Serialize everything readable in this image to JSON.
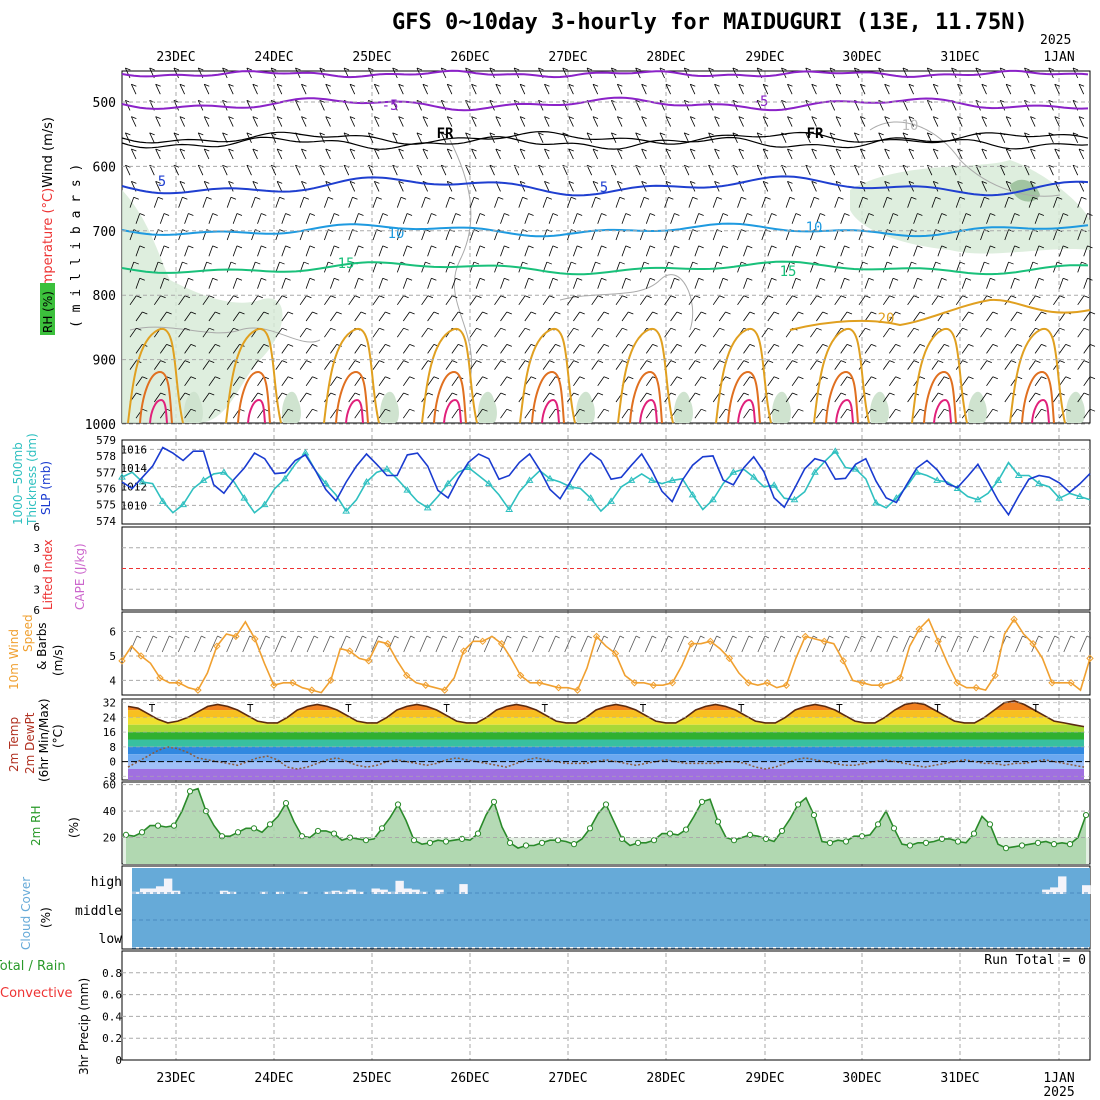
{
  "title": "GFS 0~10day 3-hourly for MAIDUGURI (13E, 11.75N)",
  "year": "2025",
  "dates": [
    "23DEC",
    "24DEC",
    "25DEC",
    "26DEC",
    "27DEC",
    "28DEC",
    "29DEC",
    "30DEC",
    "31DEC",
    "1JAN"
  ],
  "colors": {
    "frame": "#000000",
    "grid": "#aaaaaa",
    "purple": "#8b22c8",
    "blue": "#1f3fd0",
    "lightblue": "#1e9ae0",
    "green_iso": "#19c07a",
    "orange": "#e0a020",
    "darkorange": "#e07020",
    "magenta": "#e0207a",
    "slp": "#1a3bd0",
    "thick": "#2fc0c0",
    "wind10": "#f0a030",
    "rh": "#2a9a2a",
    "cloud": "#66aad8",
    "cape": "#cc66cc",
    "li": "#ee3333"
  },
  "panels": {
    "upper_air": {
      "axis_label_wind": "Wind (m/s)",
      "axis_label_temp": "Temperature (°C)",
      "axis_label_rh": "RH (%)",
      "axis_label_press": "( m i l l i b a r s )",
      "ticks": [
        "500",
        "600",
        "700",
        "800",
        "900",
        "1000"
      ],
      "isotherm_labels": [
        "-5",
        "-5",
        "FR",
        "FR",
        "5",
        "5",
        "10",
        "10",
        "15",
        "15",
        "20",
        "10"
      ]
    },
    "slp": {
      "label1": "1000−500mb",
      "label2": "Thickness (dm)",
      "label3": "SLP (mb)",
      "left_ticks": [
        "579",
        "578",
        "577",
        "576",
        "575",
        "574"
      ],
      "right_ticks": [
        "1016",
        "1014",
        "1012",
        "1010"
      ]
    },
    "cape": {
      "label1": "Lifted Index",
      "label2": "CAPE (J/kg)",
      "ticks": [
        "-6",
        "-3",
        "0",
        "3",
        "6"
      ]
    },
    "wind10": {
      "label1": "10m Wind",
      "label2": "Speed",
      "label3": "& Barbs",
      "label4": "(m/s)",
      "ticks": [
        "6",
        "5",
        "4"
      ]
    },
    "temp2m": {
      "label1": "2m Temp",
      "label2": "2m DewPt",
      "label3": "(6hr Min/Max)",
      "label4": "(°C)",
      "ticks": [
        "32",
        "24",
        "16",
        "8",
        "0",
        "-8"
      ]
    },
    "rh2m": {
      "label1": "2m RH",
      "label2": "(%)",
      "ticks": [
        "60",
        "40",
        "20"
      ]
    },
    "cloud": {
      "label1": "Cloud Cover",
      "label2": "(%)",
      "ticks": [
        "high",
        "middle",
        "low"
      ]
    },
    "precip": {
      "label1": "3hr Precip (mm)",
      "label2": "Total / Rain",
      "label3": "Convective",
      "run_total": "Run Total = 0",
      "ticks": [
        "0.8",
        "0.6",
        "0.4",
        "0.2",
        "0"
      ]
    }
  },
  "chart_data": [
    {
      "type": "line",
      "title": "1000-500mb Thickness (dm) / SLP (mb)",
      "series": [
        {
          "name": "SLP (mb)",
          "values": [
            1012.5,
            1011.8,
            1013,
            1014.2,
            1016.2,
            1015.6,
            1014.8,
            1015.8,
            1015.8,
            1012.2,
            1011.3,
            1012.8,
            1014,
            1015.6,
            1015,
            1013.4,
            1013.5,
            1014.8,
            1015.4,
            1013.7,
            1011.7,
            1010.5,
            1012.5,
            1014.2,
            1015.5,
            1014.4,
            1013.2,
            1013.2,
            1015.4,
            1015.6,
            1014.2,
            1011.6,
            1010.8,
            1012.9,
            1014.6,
            1015.5,
            1015,
            1012.8,
            1013.2,
            1014.6,
            1015.5,
            1013.8,
            1011.7,
            1010.7,
            1012.5,
            1014.4,
            1015.6,
            1014.8,
            1012.8,
            1013,
            1014.3,
            1015.5,
            1013.7,
            1011.5,
            1010.4,
            1012.7,
            1014.3,
            1015.2,
            1015.3,
            1012.7,
            1012.2,
            1014,
            1015.2,
            1013.6,
            1010.8,
            1009.8,
            1011.8,
            1013.9,
            1015,
            1014.7,
            1012.8,
            1012.9,
            1014.4,
            1015,
            1012.6,
            1010.8,
            1010.3,
            1012.2,
            1014,
            1014.8,
            1013.8,
            1012.3,
            1011.9,
            1013.1,
            1014.4,
            1012.5,
            1010.5,
            1009,
            1011,
            1012.8,
            1013.2,
            1013,
            1012.4,
            1011.4,
            1012.3,
            1013.4
          ]
        },
        {
          "name": "Thickness (dm)",
          "values": [
            576.7,
            577,
            576.4,
            576.3,
            575.2,
            574.5,
            575,
            576,
            576.5,
            576.9,
            577,
            576.4,
            575.4,
            574.5,
            575,
            576,
            576.6,
            577.5,
            578.2,
            577.1,
            576.3,
            575.6,
            574.6,
            575.3,
            576.4,
            577,
            577.2,
            576.6,
            575.9,
            575.2,
            574.8,
            575.5,
            576.3,
            577,
            577.3,
            576.8,
            576.3,
            575.6,
            574.7,
            575.8,
            576.5,
            577.1,
            576.6,
            576.4,
            576.1,
            576,
            575.4,
            574.6,
            575.2,
            576.1,
            576.5,
            576.9,
            576.5,
            576.3,
            576.5,
            576.6,
            575.6,
            574.7,
            575.3,
            576.3,
            577,
            577.2,
            576.7,
            576.1,
            576.2,
            575.4,
            575.3,
            575.8,
            577,
            577.7,
            578.3,
            577.3,
            577.2,
            576.6,
            575.1,
            574.8,
            575.4,
            576.1,
            577,
            576.8,
            576.5,
            576.4,
            576,
            575.5,
            575.3,
            575.7,
            576.5,
            577.6,
            576.8,
            576.8,
            576.3,
            576.1,
            575.4,
            575.7,
            575.5,
            575.3
          ]
        }
      ],
      "ylim_slp": [
        1008,
        1017
      ],
      "ylim_thick": [
        573.8,
        579
      ]
    },
    {
      "type": "line",
      "title": "10m Wind Speed (m/s)",
      "values": [
        4.8,
        5.4,
        5.0,
        4.7,
        4.1,
        3.9,
        3.9,
        3.7,
        3.6,
        4.3,
        5.4,
        5.9,
        5.8,
        6.4,
        5.7,
        4.7,
        3.8,
        3.9,
        3.9,
        3.7,
        3.6,
        3.5,
        4.0,
        5.3,
        5.2,
        4.9,
        4.8,
        5.6,
        5.5,
        4.8,
        4.2,
        3.9,
        3.8,
        3.7,
        3.6,
        4.1,
        5.2,
        5.6,
        5.6,
        5.8,
        5.5,
        4.9,
        4.2,
        3.9,
        3.9,
        3.8,
        3.7,
        3.7,
        3.6,
        4.5,
        5.8,
        5.4,
        5.1,
        4.2,
        3.9,
        3.9,
        3.8,
        3.8,
        3.9,
        4.6,
        5.5,
        5.5,
        5.6,
        5.3,
        4.9,
        4.3,
        3.9,
        3.8,
        3.9,
        3.7,
        3.8,
        4.9,
        5.8,
        5.7,
        5.6,
        5.5,
        4.8,
        4.0,
        3.9,
        3.8,
        3.8,
        3.9,
        4.1,
        5.4,
        6.1,
        6.5,
        5.6,
        4.7,
        3.9,
        3.7,
        3.7,
        3.6,
        4.2,
        5.9,
        6.5,
        5.9,
        5.5,
        4.9,
        3.9,
        3.9,
        3.9,
        3.6,
        4.9
      ],
      "ylim": [
        3.4,
        6.8
      ]
    },
    {
      "type": "area",
      "title": "2m Temp / DewPt (°C)",
      "series": [
        {
          "name": "2m Temp",
          "values": [
            30,
            29,
            26,
            23,
            21,
            22,
            24,
            27,
            30,
            31,
            30,
            28,
            25,
            22,
            21,
            21,
            24,
            28,
            30,
            31,
            30,
            28,
            25,
            22,
            21,
            21,
            24,
            28,
            30,
            31,
            30,
            28,
            25,
            22,
            21,
            21,
            24,
            28,
            30,
            31,
            30,
            28,
            25,
            22,
            21,
            21,
            24,
            28,
            30,
            31,
            30,
            28,
            25,
            22,
            21,
            21,
            24,
            28,
            30,
            31,
            30,
            28,
            25,
            22,
            21,
            21,
            24,
            28,
            30,
            31,
            30,
            28,
            25,
            22,
            21,
            21,
            24,
            28,
            31,
            32,
            31,
            28,
            25,
            22,
            21,
            21,
            24,
            28,
            32,
            33,
            31,
            28,
            25,
            22,
            21,
            20,
            19
          ]
        },
        {
          "name": "2m DewPt",
          "values": [
            -3,
            0,
            3,
            6,
            8,
            7,
            5,
            2,
            1,
            0,
            -1,
            -2,
            0,
            2,
            3,
            1,
            -3,
            -4,
            -3,
            -1,
            1,
            2,
            0,
            -2,
            -3,
            -2,
            0,
            1,
            0,
            -1,
            -2,
            -1,
            1,
            2,
            1,
            0,
            -1,
            -2,
            -3,
            -1,
            1,
            2,
            1,
            0,
            -1,
            -1,
            -1,
            0,
            1,
            0,
            -1,
            -2,
            -1,
            0,
            1,
            0,
            -1,
            -1,
            -1,
            -1,
            0,
            0,
            -1,
            -3,
            -4,
            -3,
            -1,
            1,
            2,
            1,
            0,
            -1,
            -2,
            -2,
            -1,
            0,
            1,
            0,
            -1,
            -2,
            -3,
            -2,
            -1,
            0,
            1,
            0,
            -1,
            -1,
            -2,
            -1,
            -1,
            0,
            1,
            0,
            -1,
            -2,
            -3
          ]
        }
      ],
      "ylim": [
        -10,
        34
      ]
    },
    {
      "type": "area",
      "title": "2m RH (%)",
      "values": [
        22,
        21,
        24,
        29,
        29,
        28,
        29,
        40,
        55,
        57,
        40,
        29,
        21,
        21,
        24,
        27,
        27,
        24,
        30,
        36,
        46,
        32,
        21,
        20,
        25,
        25,
        23,
        18,
        20,
        19,
        18,
        19,
        27,
        35,
        45,
        33,
        18,
        15,
        16,
        18,
        17,
        18,
        19,
        18,
        23,
        37,
        47,
        28,
        16,
        12,
        14,
        14,
        16,
        18,
        18,
        17,
        15,
        19,
        27,
        38,
        45,
        32,
        19,
        14,
        16,
        16,
        18,
        23,
        23,
        22,
        26,
        36,
        47,
        49,
        32,
        20,
        18,
        20,
        22,
        21,
        19,
        17,
        25,
        34,
        45,
        50,
        37,
        17,
        16,
        18,
        17,
        21,
        21,
        22,
        30,
        40,
        27,
        15,
        14,
        16,
        16,
        17,
        19,
        19,
        17,
        16,
        23,
        36,
        30,
        15,
        12,
        13,
        14,
        15,
        16,
        17,
        15,
        16,
        15,
        20,
        37
      ],
      "ylim": [
        0,
        62
      ]
    },
    {
      "type": "bar",
      "title": "Cloud Cover (%)",
      "high_values": [
        10,
        25,
        25,
        35,
        70,
        15,
        0,
        0,
        0,
        0,
        0,
        15,
        10,
        0,
        0,
        0,
        10,
        0,
        10,
        0,
        0,
        10,
        0,
        0,
        10,
        15,
        10,
        20,
        10,
        0,
        25,
        20,
        10,
        60,
        25,
        20,
        10,
        0,
        20,
        0,
        0,
        45,
        0,
        0,
        0,
        0,
        0,
        0,
        0,
        0,
        0,
        0,
        0,
        0,
        0,
        0,
        0,
        0,
        0,
        0,
        0,
        0,
        0,
        0,
        0,
        0,
        0,
        0,
        0,
        0,
        0,
        0,
        0,
        0,
        0,
        0,
        0,
        0,
        0,
        0,
        0,
        0,
        0,
        0,
        0,
        0,
        0,
        0,
        0,
        0,
        0,
        0,
        0,
        0,
        0,
        0,
        0,
        0,
        0,
        0,
        0,
        0,
        0,
        0,
        0,
        0,
        0,
        0,
        0,
        0,
        0,
        0,
        0,
        0,
        20,
        30,
        80,
        0,
        0,
        40
      ],
      "ylim": [
        0,
        100
      ]
    },
    {
      "type": "bar",
      "title": "3hr Precip (mm)",
      "values": [],
      "ylim": [
        0,
        1
      ],
      "run_total": 0
    }
  ]
}
